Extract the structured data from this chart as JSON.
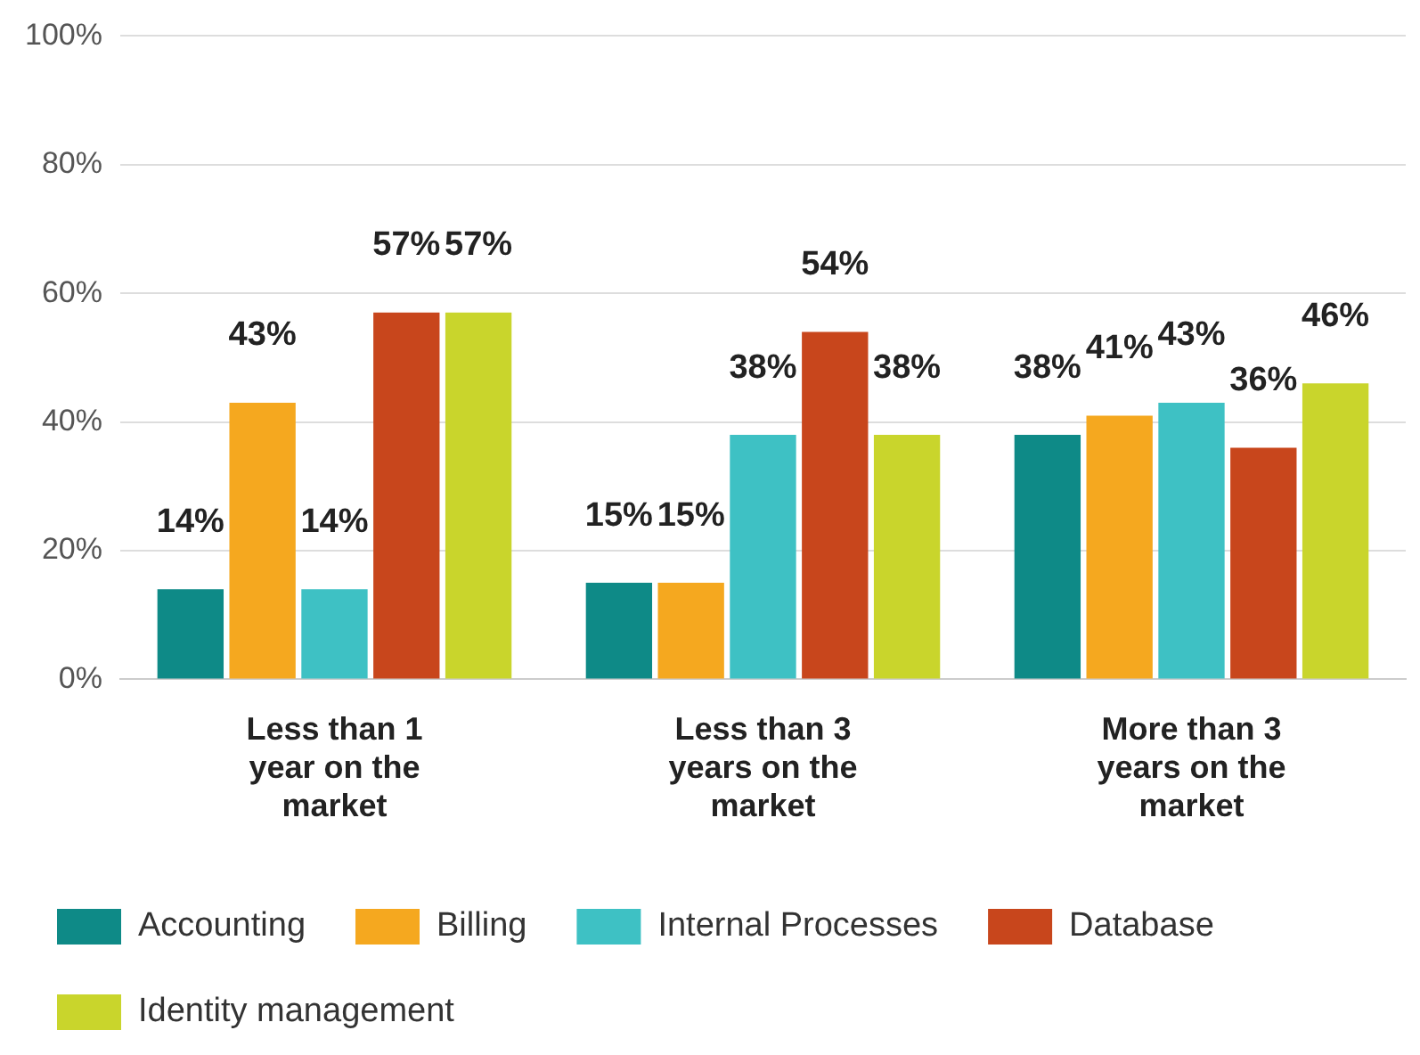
{
  "chart_data": {
    "type": "bar",
    "categories": [
      "Less than 1 year on the market",
      "Less than 3 years on the market",
      "More than 3 years on the market"
    ],
    "series": [
      {
        "name": "Accounting",
        "color": "#0e8a87",
        "values": [
          14,
          15,
          38
        ],
        "value_labels": [
          "14%",
          "15%",
          "38%"
        ]
      },
      {
        "name": "Billing",
        "color": "#f5a81f",
        "values": [
          43,
          15,
          41
        ],
        "value_labels": [
          "43%",
          "15%",
          "41%"
        ]
      },
      {
        "name": "Internal Processes",
        "color": "#3ec1c4",
        "values": [
          14,
          38,
          43
        ],
        "value_labels": [
          "14%",
          "38%",
          "43%"
        ]
      },
      {
        "name": "Database",
        "color": "#c8461c",
        "values": [
          57,
          54,
          36
        ],
        "value_labels": [
          "57%",
          "54%",
          "36%"
        ]
      },
      {
        "name": "Identity management",
        "color": "#c9d52c",
        "values": [
          57,
          38,
          46
        ],
        "value_labels": [
          "57%",
          "38%",
          "46%"
        ]
      }
    ],
    "ylim": [
      0,
      100
    ],
    "yticks": [
      {
        "value": 0,
        "label": "0%"
      },
      {
        "value": 20,
        "label": "20%"
      },
      {
        "value": 40,
        "label": "40%"
      },
      {
        "value": 60,
        "label": "60%"
      },
      {
        "value": 80,
        "label": "80%"
      },
      {
        "value": 100,
        "label": "100%"
      }
    ],
    "grid": "y",
    "legend": "bottom"
  }
}
